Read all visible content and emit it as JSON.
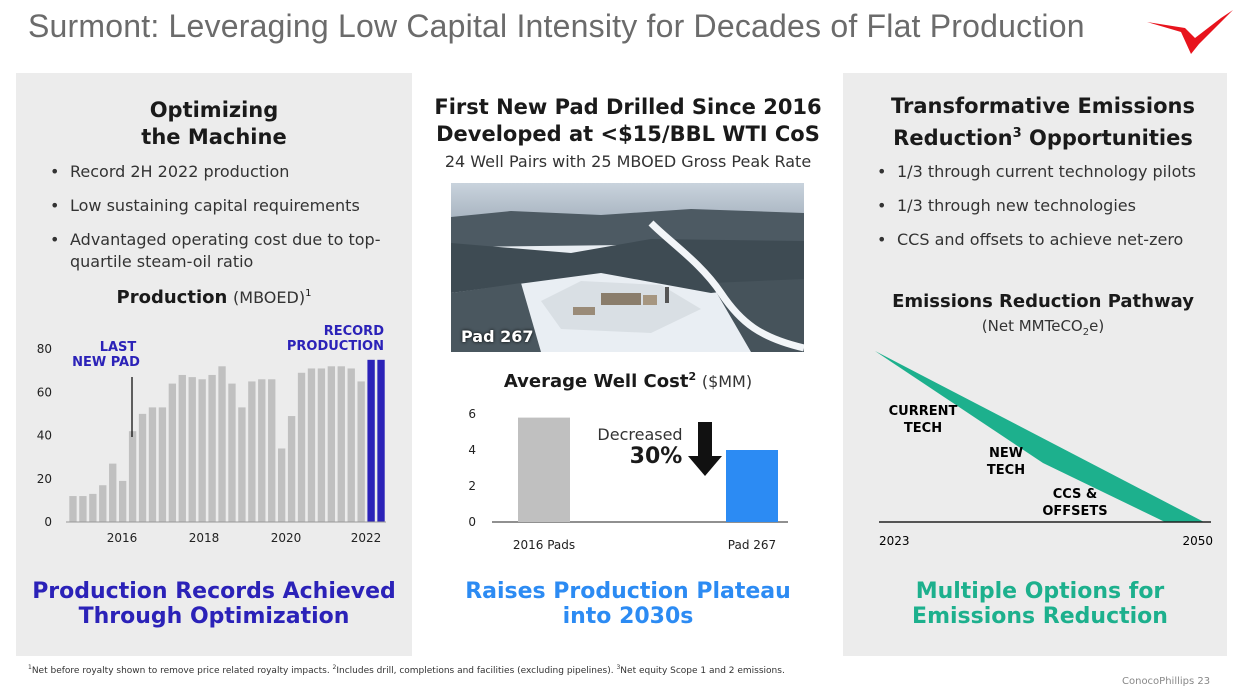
{
  "title": "Surmont: Leveraging Low Capital Intensity for Decades of Flat Production",
  "left": {
    "heading_line1": "Optimizing",
    "heading_line2": "the Machine",
    "bullets": [
      "Record 2H 2022 production",
      "Low sustaining capital requirements",
      "Advantaged operating cost due to top-quartile steam-oil ratio"
    ],
    "chart_title": "Production",
    "chart_unit": "(MBOED)",
    "chart_sup": "1",
    "annotation_last_pad_1": "LAST",
    "annotation_last_pad_2": "NEW PAD",
    "annotation_record_1": "RECORD",
    "annotation_record_2": "PRODUCTION",
    "caption_line1": "Production Records Achieved",
    "caption_line2": "Through Optimization"
  },
  "middle": {
    "heading_line1": "First New Pad Drilled Since 2016",
    "heading_line2": "Developed at <$15/BBL WTI CoS",
    "subheading": "24 Well Pairs with 25 MBOED Gross Peak Rate",
    "photo_label": "Pad 267",
    "chart_title": "Average Well Cost",
    "chart_sup": "2",
    "chart_unit": "($MM)",
    "decrease_label": "Decreased",
    "decrease_value": "30%",
    "caption_line1": "Raises Production Plateau",
    "caption_line2": "into 2030s"
  },
  "right": {
    "heading_line1": "Transformative Emissions",
    "heading_line2_a": "Reduction",
    "heading_line2_sup": "3",
    "heading_line2_b": " Opportunities",
    "bullets": [
      "1/3 through current technology pilots",
      "1/3 through new technologies",
      "CCS and offsets to achieve net-zero"
    ],
    "chart_title": "Emissions Reduction Pathway",
    "chart_unit_a": "(Net MMTeCO",
    "chart_unit_sub": "2",
    "chart_unit_b": "e)",
    "label_current_1": "CURRENT",
    "label_current_2": "TECH",
    "label_new_1": "NEW",
    "label_new_2": "TECH",
    "label_ccs_1": "CCS &",
    "label_ccs_2": "OFFSETS",
    "x_start": "2023",
    "x_end": "2050",
    "caption_line1": "Multiple Options for",
    "caption_line2": "Emissions Reduction"
  },
  "footnote": {
    "s1": "1",
    "t1": "Net before royalty shown to remove price related royalty impacts. ",
    "s2": "2",
    "t2": "Includes drill, completions and facilities (excluding pipelines). ",
    "s3": "3",
    "t3": "Net equity Scope 1 and 2 emissions."
  },
  "brand": "ConocoPhillips   23",
  "colors": {
    "gray_bar": "#c0c0c0",
    "record_bar": "#2b22b8",
    "blue": "#2c8bf3",
    "green": "#1db08d",
    "navy": "#2b22b8"
  },
  "chart_data": [
    {
      "type": "bar",
      "title": "Production",
      "ylabel": "(MBOED)",
      "ylim": [
        0,
        80
      ],
      "yticks": [
        0,
        20,
        40,
        60,
        80
      ],
      "xtick_labels": [
        "2016",
        "2018",
        "2020",
        "2022"
      ],
      "values": [
        12,
        12,
        13,
        17,
        27,
        19,
        42,
        50,
        53,
        53,
        64,
        68,
        67,
        66,
        68,
        72,
        64,
        53,
        65,
        66,
        66,
        34,
        49,
        69,
        71,
        71,
        72,
        72,
        71,
        65,
        75,
        75
      ],
      "record_from_index": 30
    },
    {
      "type": "bar",
      "title": "Average Well Cost",
      "ylabel": "($MM)",
      "ylim": [
        0,
        6
      ],
      "yticks": [
        0,
        2,
        4,
        6
      ],
      "categories": [
        "2016 Pads",
        "Pad 267"
      ],
      "values": [
        5.8,
        4.0
      ]
    }
  ]
}
